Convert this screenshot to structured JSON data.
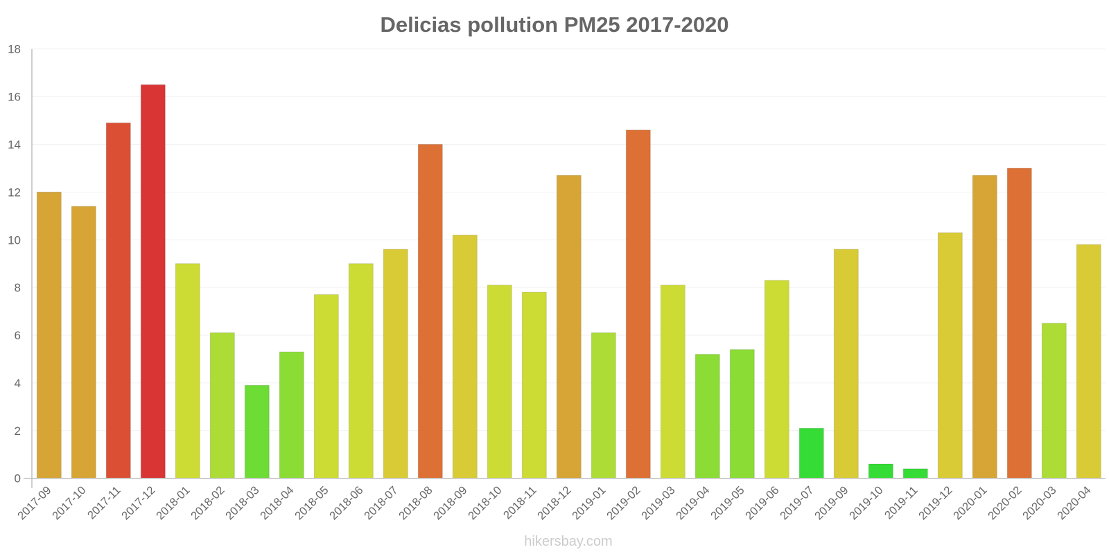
{
  "chart_data": {
    "type": "bar",
    "title": "Delicias pollution PM25 2017-2020",
    "xlabel": "",
    "ylabel": "",
    "ylim": [
      0,
      18
    ],
    "yticks": [
      0,
      2,
      4,
      6,
      8,
      10,
      12,
      14,
      16,
      18
    ],
    "grid": true,
    "legend": null,
    "categories": [
      "2017-09",
      "2017-10",
      "2017-11",
      "2017-12",
      "2018-01",
      "2018-02",
      "2018-03",
      "2018-04",
      "2018-05",
      "2018-06",
      "2018-07",
      "2018-08",
      "2018-09",
      "2018-10",
      "2018-11",
      "2018-12",
      "2019-01",
      "2019-02",
      "2019-03",
      "2019-04",
      "2019-05",
      "2019-06",
      "2019-07",
      "2019-09",
      "2019-10",
      "2019-11",
      "2019-12",
      "2020-01",
      "2020-02",
      "2020-03",
      "2020-04"
    ],
    "values": [
      12.0,
      11.4,
      14.9,
      16.5,
      9.0,
      6.1,
      3.9,
      5.3,
      7.7,
      9.0,
      9.6,
      14.0,
      10.2,
      8.1,
      7.8,
      12.7,
      6.1,
      14.6,
      8.1,
      5.2,
      5.4,
      8.3,
      2.1,
      9.6,
      0.6,
      0.4,
      10.3,
      12.7,
      13.0,
      6.5,
      9.8
    ],
    "colors": [
      "#d6a535",
      "#d6a535",
      "#db5035",
      "#d93535",
      "#cddc35",
      "#acdc35",
      "#6ddc35",
      "#8bdc35",
      "#cddc35",
      "#cddc35",
      "#d9cb35",
      "#dd7035",
      "#d9cb35",
      "#cddc35",
      "#cddc35",
      "#d6a535",
      "#acdc35",
      "#dd7035",
      "#cddc35",
      "#8bdc35",
      "#8bdc35",
      "#cddc35",
      "#35dc35",
      "#d9cb35",
      "#35dc35",
      "#35dc35",
      "#d9cb35",
      "#d6a535",
      "#dd7035",
      "#acdc35",
      "#d9cb35"
    ]
  },
  "footer": {
    "watermark": "hikersbay.com"
  }
}
